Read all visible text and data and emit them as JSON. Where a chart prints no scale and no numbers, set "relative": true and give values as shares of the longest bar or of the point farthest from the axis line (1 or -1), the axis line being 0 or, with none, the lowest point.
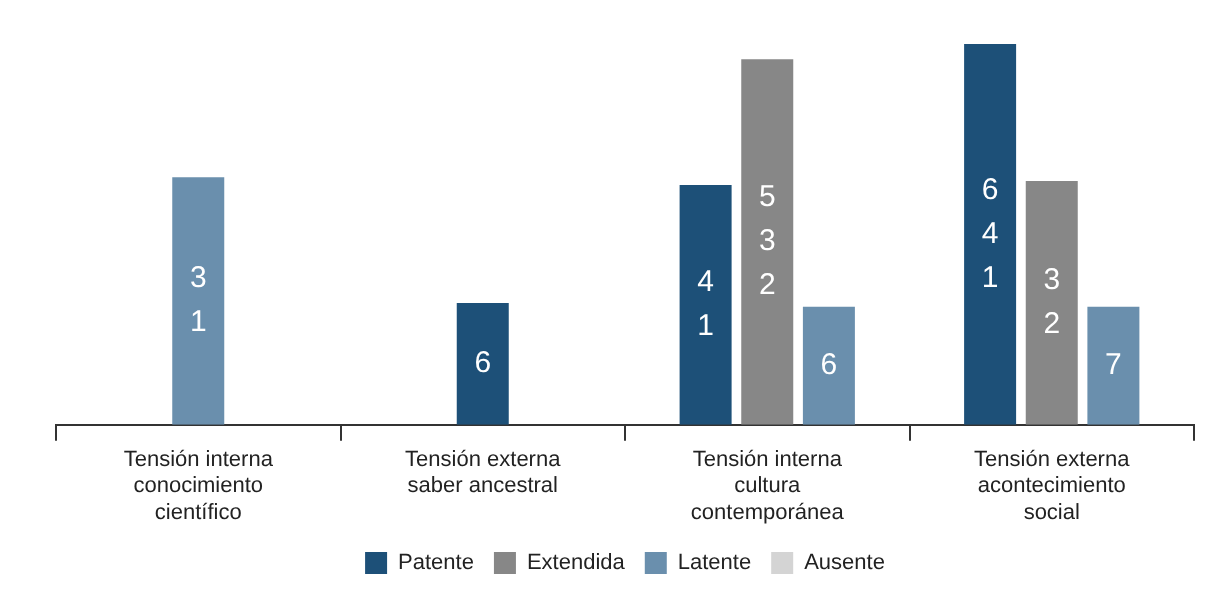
{
  "chart_data": {
    "type": "bar",
    "relative": true,
    "categories": [
      "Tensión interna conocimiento científico",
      "Tensión externa saber ancestral",
      "Tensión interna cultura contemporánea",
      "Tensión externa acontecimiento social"
    ],
    "series": [
      {
        "name": "Patente",
        "color": "#1d5078",
        "values": [
          null,
          0.32,
          0.63,
          1
        ]
      },
      {
        "name": "Extendida",
        "color": "#878787",
        "values": [
          null,
          null,
          0.96,
          0.64
        ]
      },
      {
        "name": "Latente",
        "color": "#6a8fad",
        "values": [
          0.65,
          null,
          0.31,
          0.31
        ]
      },
      {
        "name": "Ausente",
        "color": "#d4d4d4",
        "values": [
          null,
          null,
          null,
          null
        ]
      }
    ],
    "annotations": [
      "6",
      "4 1",
      "6 4 1",
      "5 3 2",
      "3 2",
      "3 1",
      "6",
      "7"
    ],
    "legend": "bottom",
    "grid": false
  }
}
